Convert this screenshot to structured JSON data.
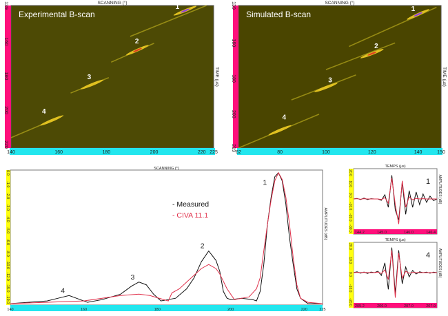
{
  "chart_data": [
    {
      "type": "heatmap",
      "title": "Experimental B-scan",
      "xlabel": "SCANNING (°)",
      "ylabel": "TIME (µs)",
      "xlim": [
        140,
        225
      ],
      "ylim": [
        139,
        222
      ],
      "xticks": [
        "140",
        "160",
        "180",
        "200",
        "220",
        "225"
      ],
      "xtick_values": [
        140,
        160,
        180,
        200,
        220,
        225
      ],
      "yticks": [
        "139",
        "160",
        "180",
        "200",
        "220"
      ],
      "ytick_values": [
        139,
        160,
        180,
        200,
        220
      ],
      "echoes": [
        {
          "label": "1",
          "x": [
            190,
            222
          ],
          "t": [
            157,
            139
          ],
          "peak": [
            213,
            142
          ]
        },
        {
          "label": "2",
          "x": [
            182,
            200
          ],
          "t": [
            172,
            161
          ],
          "peak": [
            193,
            165
          ]
        },
        {
          "label": "3",
          "x": [
            165,
            181
          ],
          "t": [
            190,
            181
          ],
          "peak": [
            174,
            185
          ]
        },
        {
          "label": "4",
          "x": [
            140,
            162
          ],
          "t": [
            216,
            203
          ],
          "peak": [
            157,
            206
          ]
        }
      ],
      "labels": [
        {
          "text": "1",
          "x": 209,
          "t": 141
        },
        {
          "text": "2",
          "x": 192,
          "t": 161
        },
        {
          "text": "3",
          "x": 172,
          "t": 182
        },
        {
          "text": "4",
          "x": 153,
          "t": 202
        }
      ]
    },
    {
      "type": "heatmap",
      "title": "Simulated B-scan",
      "xlabel": "SCANNING (°)",
      "ylabel": "TIME (µs)",
      "xlim": [
        62,
        150
      ],
      "ylim": [
        139,
        219
      ],
      "xticks": [
        "62",
        "80",
        "100",
        "120",
        "140",
        "150"
      ],
      "xtick_values": [
        62,
        80,
        100,
        120,
        140,
        150
      ],
      "yticks": [
        "139",
        "160",
        "180",
        "200",
        "219"
      ],
      "ytick_values": [
        139,
        160,
        180,
        200,
        219
      ],
      "echoes": [
        {
          "label": "1",
          "x": [
            110,
            148
          ],
          "t": [
            162,
            140
          ],
          "peak": [
            140,
            144
          ]
        },
        {
          "label": "2",
          "x": [
            100,
            130
          ],
          "t": [
            175,
            160
          ],
          "peak": [
            120,
            166
          ]
        },
        {
          "label": "3",
          "x": [
            85,
            113
          ],
          "t": [
            192,
            178
          ],
          "peak": [
            100,
            185
          ]
        },
        {
          "label": "4",
          "x": [
            62,
            97
          ],
          "t": [
            219,
            200
          ],
          "peak": [
            80,
            209
          ]
        }
      ],
      "labels": [
        {
          "text": "1",
          "x": 137,
          "t": 142
        },
        {
          "text": "2",
          "x": 121,
          "t": 163
        },
        {
          "text": "3",
          "x": 101,
          "t": 182
        },
        {
          "text": "4",
          "x": 81,
          "t": 203
        }
      ]
    },
    {
      "type": "line",
      "xlabel": "SCANNING (°)",
      "ylabel": "AMPLITUDES (dB)",
      "xlim": [
        140,
        225
      ],
      "ylim": [
        0,
        1
      ],
      "xticks": [
        "140",
        "160",
        "180",
        "200",
        "220",
        "225"
      ],
      "xtick_values": [
        140,
        160,
        180,
        200,
        220,
        225
      ],
      "yticks": [
        "0.0",
        "-1.0",
        "-2.0",
        "-3.0",
        "-4.0",
        "-5.0",
        "-6.0",
        "-8.0",
        "-10.0",
        "-12.0",
        "-15.0",
        "-19.0"
      ],
      "legend": "top-center",
      "series": [
        {
          "name": "Measured",
          "legend_label": "-  Measured",
          "color": "#111111",
          "x": [
            140,
            150,
            153,
            156,
            158,
            161,
            165,
            170,
            173,
            175,
            177,
            179,
            181,
            185,
            188,
            190,
            192,
            194,
            196,
            197,
            198,
            199,
            200,
            203,
            206,
            207,
            208,
            209,
            210,
            211,
            212,
            213,
            214,
            215,
            216,
            217,
            218,
            219,
            221,
            225
          ],
          "y": [
            0.01,
            0.03,
            0.05,
            0.07,
            0.05,
            0.02,
            0.04,
            0.08,
            0.14,
            0.17,
            0.15,
            0.08,
            0.03,
            0.05,
            0.12,
            0.2,
            0.32,
            0.4,
            0.33,
            0.25,
            0.1,
            0.05,
            0.04,
            0.05,
            0.04,
            0.03,
            0.1,
            0.3,
            0.6,
            0.8,
            0.95,
            0.98,
            0.92,
            0.75,
            0.5,
            0.3,
            0.12,
            0.05,
            0.01,
            0.01
          ]
        },
        {
          "name": "CIVA 11.1",
          "legend_label": "-  CIVA 11.1",
          "color": "#e0304a",
          "x": [
            140,
            160,
            165,
            170,
            175,
            178,
            183,
            184,
            186,
            190,
            192,
            194,
            196,
            197,
            199,
            201,
            205,
            207,
            208,
            209,
            210,
            211,
            212,
            213,
            214,
            215,
            216,
            217,
            218,
            219,
            221,
            225
          ],
          "y": [
            0.01,
            0.03,
            0.05,
            0.07,
            0.08,
            0.07,
            0.03,
            0.09,
            0.12,
            0.22,
            0.27,
            0.3,
            0.27,
            0.23,
            0.12,
            0.04,
            0.06,
            0.12,
            0.2,
            0.4,
            0.6,
            0.78,
            0.92,
            0.98,
            0.93,
            0.8,
            0.6,
            0.35,
            0.15,
            0.05,
            0.02,
            0.01
          ]
        }
      ],
      "annotations": [
        {
          "text": "1",
          "x": 211,
          "y": 0.9
        },
        {
          "text": "2",
          "x": 194,
          "y": 0.43
        },
        {
          "text": "3",
          "x": 175,
          "y": 0.2
        },
        {
          "text": "4",
          "x": 156,
          "y": 0.1
        }
      ]
    },
    {
      "type": "line",
      "title": "TEMPS (µs)",
      "ylabel": "AMPLITUDES (dB)",
      "annotation": "1",
      "xticks": [
        "144.2",
        "145.0",
        "146.0",
        "146.4"
      ],
      "yticks": [
        "20.0",
        "10.0",
        "0.0",
        "-10.0",
        "-20.0",
        "-30.0"
      ],
      "series": [
        {
          "name": "Measured",
          "color": "#111111",
          "y": [
            0,
            0.02,
            -0.02,
            0.03,
            -0.02,
            0.01,
            0,
            0,
            -0.05,
            0.15,
            -0.3,
            0.85,
            -0.4,
            -0.75,
            0.6,
            -0.55,
            0.3,
            -0.3,
            0.25,
            -0.2,
            0.18,
            -0.12,
            0.1,
            -0.06,
            0
          ]
        },
        {
          "name": "CIVA 11.1",
          "color": "#e0304a",
          "y": [
            0,
            0.01,
            -0.01,
            0.01,
            0,
            0,
            0,
            0,
            -0.02,
            0.05,
            -0.15,
            0.75,
            -0.2,
            -0.9,
            0.65,
            -0.3,
            0.08,
            -0.03,
            0.02,
            0,
            0.01,
            0,
            0,
            0,
            0
          ]
        }
      ]
    },
    {
      "type": "line",
      "title": "TEMPS (µs)",
      "ylabel": "AMPLITUDES (dB)",
      "annotation": "4",
      "xticks": [
        "205.2",
        "206.0",
        "207.0",
        "207.9"
      ],
      "yticks": [
        "20.0",
        "10.0",
        "0.0",
        "-10.0",
        "-20.0"
      ],
      "series": [
        {
          "name": "Measured",
          "color": "#111111",
          "y": [
            0,
            0.03,
            -0.02,
            0.02,
            -0.03,
            0.02,
            0,
            0.05,
            -0.1,
            0.35,
            -0.6,
            0.9,
            -0.75,
            0.8,
            -0.4,
            0.2,
            -0.15,
            0.08,
            -0.05,
            0.03,
            0,
            0.02,
            -0.02,
            0.02,
            0
          ]
        },
        {
          "name": "CIVA 11.1",
          "color": "#e0304a",
          "y": [
            0,
            0.01,
            0,
            0.01,
            0,
            0,
            0,
            0.02,
            -0.03,
            0.1,
            -0.25,
            0.8,
            -0.9,
            0.7,
            -0.2,
            0.05,
            -0.02,
            0.01,
            0,
            0,
            0,
            0,
            0,
            0,
            0
          ]
        }
      ]
    }
  ]
}
